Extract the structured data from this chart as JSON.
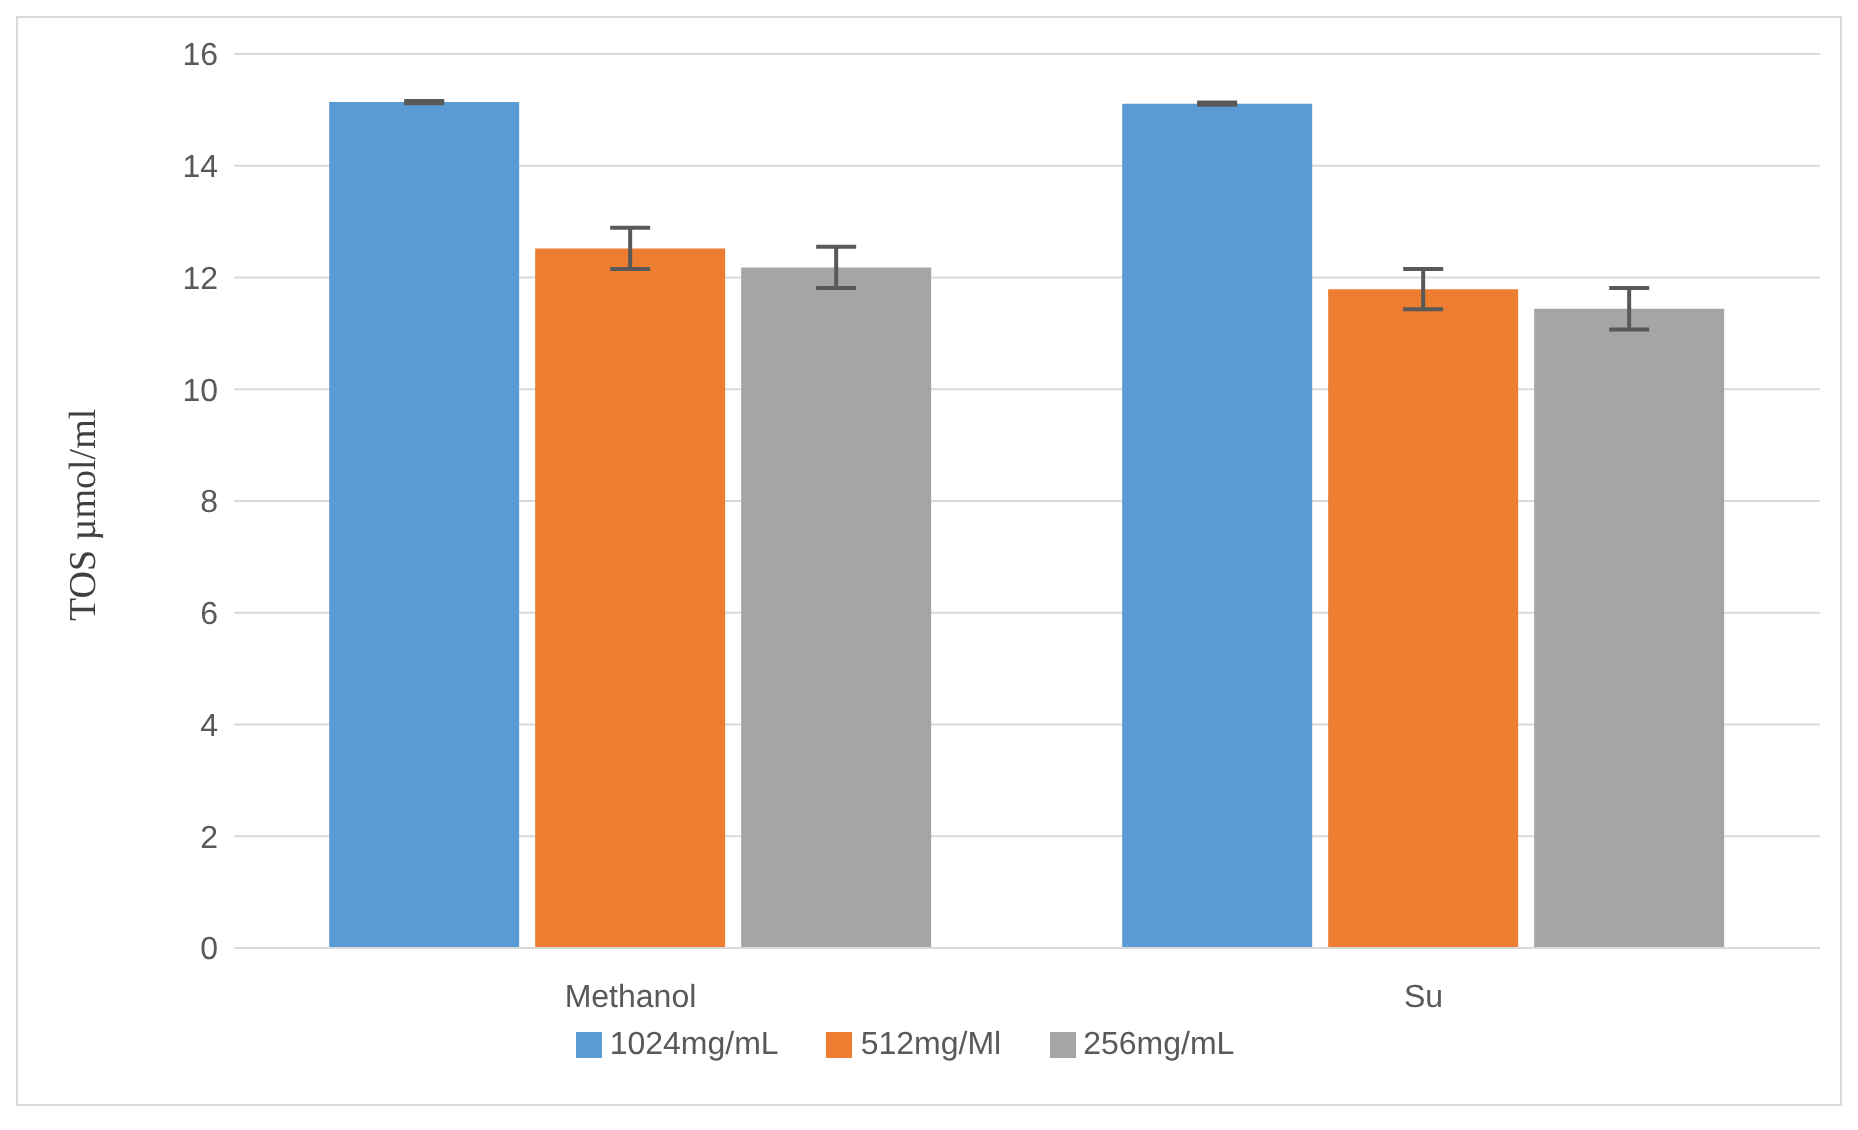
{
  "chart_data": {
    "type": "bar",
    "ylabel": "TOS µmol/ml",
    "categories": [
      "Methanol",
      "Su"
    ],
    "series": [
      {
        "name": "1024mg/mL",
        "color": "#5b9bd5",
        "values": [
          15.14,
          15.11
        ],
        "errors": [
          0.02,
          0.02
        ]
      },
      {
        "name": "512mg/Ml",
        "color": "#ed7d31",
        "values": [
          12.52,
          11.79
        ],
        "errors": [
          0.37,
          0.36
        ]
      },
      {
        "name": "256mg/mL",
        "color": "#a5a5a5",
        "values": [
          12.18,
          11.44
        ],
        "errors": [
          0.37,
          0.37
        ]
      }
    ],
    "ylim": [
      0,
      16
    ],
    "yticks": [
      0,
      2,
      4,
      6,
      8,
      10,
      12,
      14,
      16
    ],
    "grid": "y",
    "legend": "bottom"
  }
}
